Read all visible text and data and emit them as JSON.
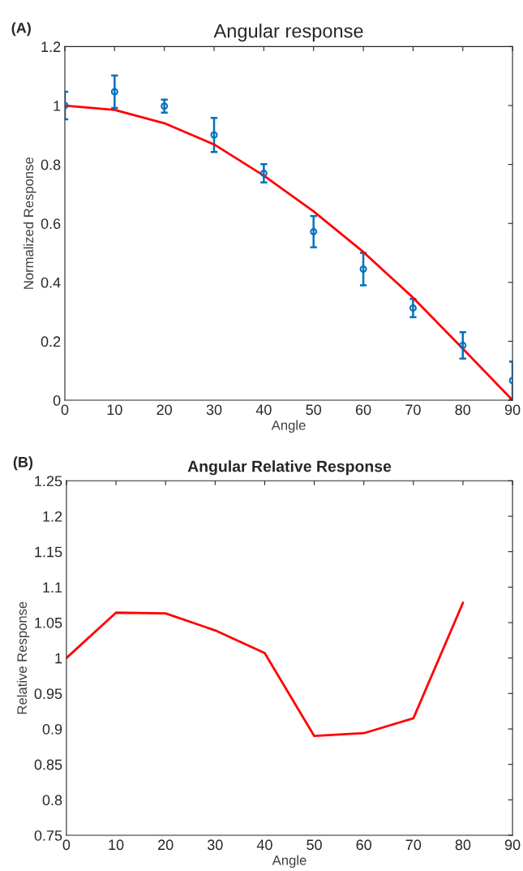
{
  "chart_data": [
    {
      "type": "scatter",
      "title": "Angular response",
      "xlabel": "Angle",
      "ylabel": "Normalized Response",
      "annotations": [
        "(A)"
      ],
      "xlim": [
        0,
        90
      ],
      "xticks": [
        0,
        10,
        20,
        30,
        40,
        50,
        60,
        70,
        80,
        90
      ],
      "ylim": [
        0,
        1.2
      ],
      "yticks": [
        0,
        0.2,
        0.4,
        0.6,
        0.8,
        1,
        1.2
      ],
      "grid": false,
      "series": [
        {
          "color": "#0072bd",
          "marker": "circle",
          "x": [
            0,
            10,
            20,
            30,
            40,
            50,
            60,
            70,
            80,
            90
          ],
          "values": [
            1.0,
            1.047,
            0.998,
            0.9,
            0.77,
            0.572,
            0.445,
            0.313,
            0.186,
            0.067
          ],
          "errors": [
            0.047,
            0.055,
            0.022,
            0.058,
            0.031,
            0.053,
            0.055,
            0.031,
            0.045,
            0.064
          ]
        },
        {
          "type": "line",
          "color": "#ff0000",
          "line_style": "solid",
          "x": [
            0,
            10,
            20,
            30,
            40,
            50,
            60,
            70,
            80,
            90
          ],
          "values": [
            1.0,
            0.985,
            0.94,
            0.868,
            0.762,
            0.641,
            0.503,
            0.348,
            0.175,
            0.0
          ]
        }
      ]
    },
    {
      "type": "line",
      "title": "Angular Relative Response",
      "xlabel": "Angle",
      "ylabel": "Relative Response",
      "annotations": [
        "(B)"
      ],
      "xlim": [
        0,
        90
      ],
      "xticks": [
        0,
        10,
        20,
        30,
        40,
        50,
        60,
        70,
        80,
        90
      ],
      "ylim": [
        0.75,
        1.25
      ],
      "yticks": [
        0.75,
        0.8,
        0.85,
        0.9,
        0.95,
        1,
        1.05,
        1.1,
        1.15,
        1.2,
        1.25
      ],
      "grid": false,
      "series": [
        {
          "color": "#ff0000",
          "line_style": "solid",
          "x": [
            0,
            10,
            20,
            30,
            40,
            50,
            60,
            70,
            80
          ],
          "values": [
            1.0,
            1.064,
            1.063,
            1.039,
            1.007,
            0.89,
            0.894,
            0.915,
            1.078
          ]
        }
      ]
    }
  ]
}
